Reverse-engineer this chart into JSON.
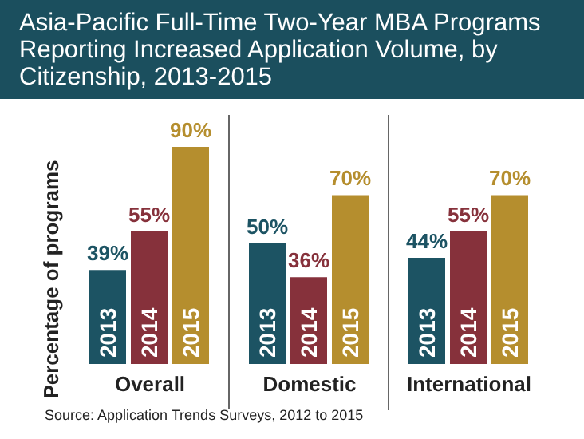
{
  "chart_data": {
    "type": "bar",
    "title": "Asia-Pacific Full-Time Two-Year MBA Programs Reporting Increased Application Volume, by Citizenship, 2013-2015",
    "ylabel": "Percentage of programs",
    "categories": [
      "Overall",
      "Domestic",
      "International"
    ],
    "series": [
      {
        "name": "2013",
        "color": "#1c5363",
        "values": [
          39,
          50,
          44
        ],
        "value_labels": [
          "39%",
          "50%",
          "44%"
        ]
      },
      {
        "name": "2014",
        "color": "#86313b",
        "values": [
          55,
          36,
          55
        ],
        "value_labels": [
          "55%",
          "36%",
          "55%"
        ]
      },
      {
        "name": "2015",
        "color": "#b58e2e",
        "values": [
          90,
          70,
          70
        ],
        "value_labels": [
          "90%",
          "70%",
          "70%"
        ]
      }
    ],
    "legend": false,
    "annotations": [
      "Source: Application Trends Surveys, 2012 to 2015"
    ]
  }
}
